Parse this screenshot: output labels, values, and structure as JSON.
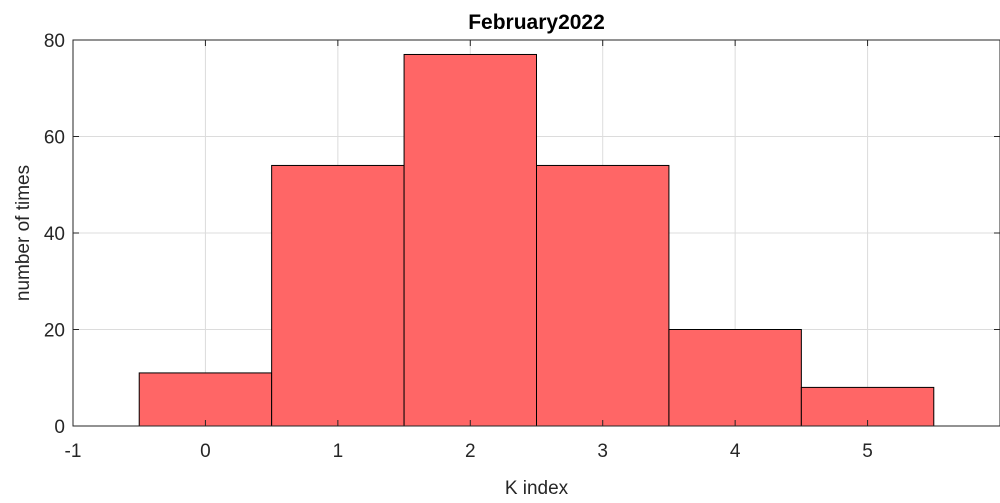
{
  "chart_data": {
    "type": "bar",
    "title": "February2022",
    "xlabel": "K index",
    "ylabel": "number of times",
    "xlim": [
      -1,
      6
    ],
    "ylim": [
      0,
      80
    ],
    "xticks": [
      "-1",
      "0",
      "1",
      "2",
      "3",
      "4",
      "5"
    ],
    "yticks": [
      "0",
      "20",
      "40",
      "60",
      "80"
    ],
    "grid": true,
    "bar_color": "#ff6666",
    "edge_color": "#000000",
    "categories": [
      0,
      1,
      2,
      3,
      4,
      5
    ],
    "values": [
      11,
      54,
      77,
      54,
      20,
      8
    ]
  }
}
